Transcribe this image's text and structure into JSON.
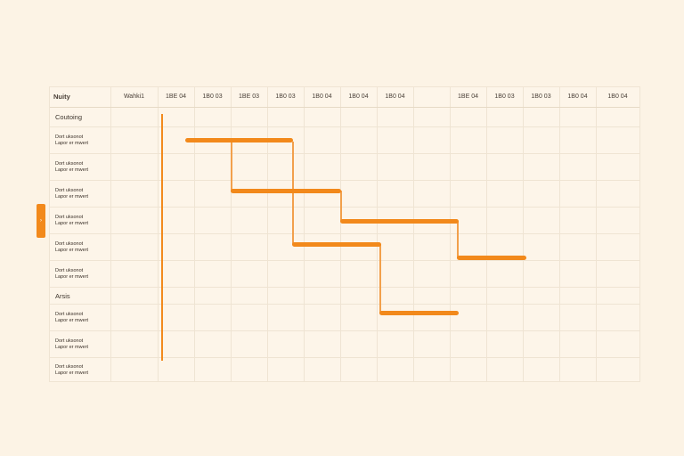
{
  "header": {
    "name_col": "Nuity",
    "columns": [
      "Wahki1",
      "1BE 04",
      "1B0 03",
      "1BE 03",
      "1B0 03",
      "1B0 04",
      "1B0 04",
      "1B0 04",
      "1BE 04",
      "1B0 03",
      "1B0 03",
      "1B0 04",
      "1B0 04"
    ]
  },
  "groups": [
    {
      "label": "Coutoing",
      "tasks": [
        {
          "line1": "Dort uksonot",
          "line2": "Lapor er mwert"
        },
        {
          "line1": "Dort uksonot",
          "line2": "Lapor er mwert"
        },
        {
          "line1": "Dort uksonot",
          "line2": "Lapor er mwert"
        },
        {
          "line1": "Dort uksonot",
          "line2": "Lapor er mwert"
        },
        {
          "line1": "Dort uksonot",
          "line2": "Lapor er mwert"
        },
        {
          "line1": "Dort uksonot",
          "line2": "Lapor er mwert"
        }
      ]
    },
    {
      "label": "Arsis",
      "tasks": [
        {
          "line1": "Dort uksonot",
          "line2": "Lapor er mwert"
        },
        {
          "line1": "Dort uksonot",
          "line2": "Lapor er mwert"
        },
        {
          "line1": "Dort uksonot",
          "line2": "Lapor er mwert"
        }
      ]
    }
  ],
  "side_tab": {
    "label": "›"
  },
  "colors": {
    "accent": "#f2891b",
    "background": "#fcf3e5",
    "grid": "#efe4d3"
  }
}
